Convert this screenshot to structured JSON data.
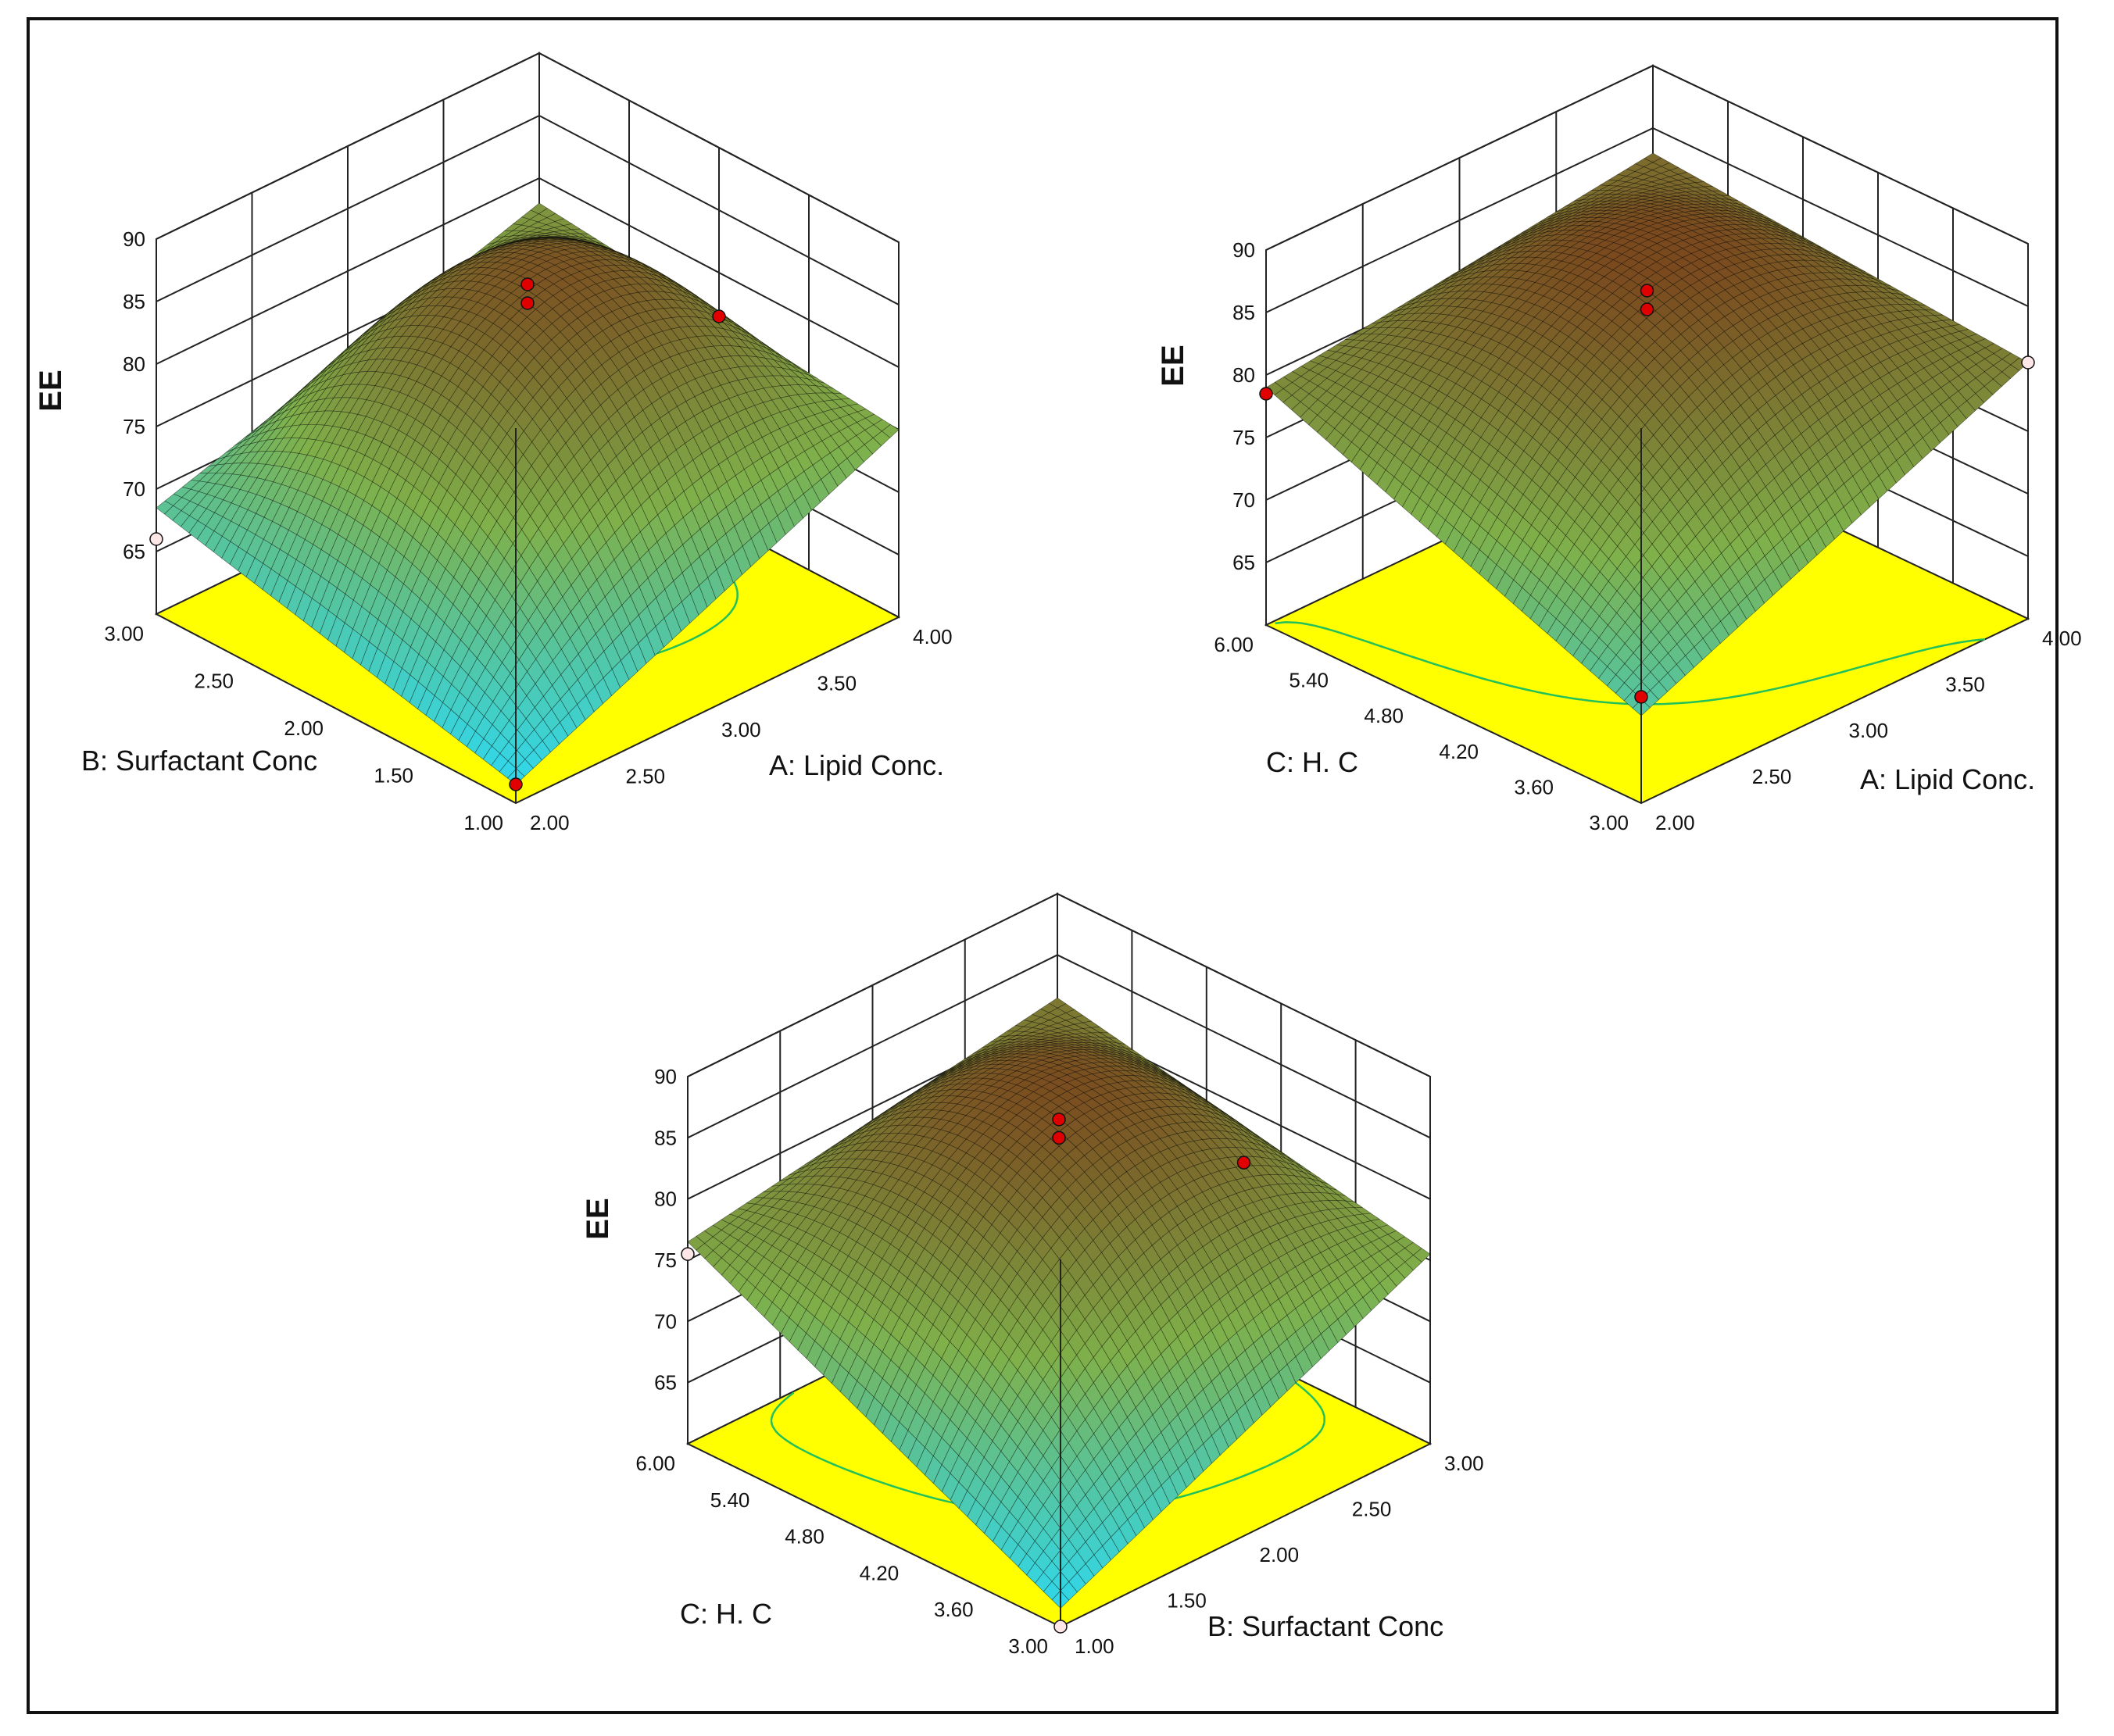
{
  "colors": {
    "frame": "#111111",
    "floor": "#ffff00",
    "grid": "#222222",
    "mesh": "#000000",
    "surface_low": "#33d6e6",
    "surface_mid": "#7fb04a",
    "surface_high": "#7a4a1e",
    "contour_green": "#22c05a",
    "contour_orange": "#e2601c",
    "design_point_red": "#e00000",
    "design_point_white": "#ffe7e7"
  },
  "chart_data": [
    {
      "type": "surface3d",
      "id": "plot-lipid-surfactant",
      "zlabel": "EE",
      "z_ticks": [
        "65",
        "70",
        "75",
        "80",
        "85",
        "90"
      ],
      "zlim": [
        60,
        90
      ],
      "x_factor": "A: Lipid Conc.",
      "x_ticks": [
        "2.00",
        "2.50",
        "3.00",
        "3.50",
        "4.00"
      ],
      "x_range": [
        2.0,
        4.0
      ],
      "y_factor": "B: Surfactant Conc",
      "y_ticks": [
        "1.00",
        "1.50",
        "2.00",
        "2.50",
        "3.00"
      ],
      "y_range": [
        1.0,
        3.0
      ],
      "surface_samples": {
        "corner_x_low_y_low": 61.5,
        "corner_x_high_y_low": 75.0,
        "corner_x_high_y_high": 78.0,
        "corner_x_low_y_high": 68.5,
        "center": 85.0
      },
      "contour_levels": [
        {
          "level": 80.0,
          "color": "green"
        },
        {
          "level": 84.5,
          "color": "orange"
        }
      ],
      "design_points": [
        {
          "x": 3.0,
          "y": 2.0,
          "z": 86.5,
          "color": "red"
        },
        {
          "x": 3.0,
          "y": 2.0,
          "z": 85.0,
          "color": "red"
        },
        {
          "x": 4.0,
          "y": 2.0,
          "z": 76.5,
          "color": "red"
        },
        {
          "x": 2.0,
          "y": 3.0,
          "z": 66.0,
          "color": "white"
        },
        {
          "x": 2.0,
          "y": 1.0,
          "z": 61.5,
          "color": "red"
        }
      ]
    },
    {
      "type": "surface3d",
      "id": "plot-lipid-hc",
      "zlabel": "EE",
      "z_ticks": [
        "65",
        "70",
        "75",
        "80",
        "85",
        "90"
      ],
      "zlim": [
        60,
        90
      ],
      "x_factor": "A: Lipid Conc.",
      "x_ticks": [
        "2.00",
        "2.50",
        "3.00",
        "3.50",
        "4.00"
      ],
      "x_range": [
        2.0,
        4.0
      ],
      "y_factor": "C: H. C",
      "y_ticks": [
        "3.00",
        "3.60",
        "4.20",
        "4.80",
        "5.40",
        "6.00"
      ],
      "y_range": [
        3.0,
        6.0
      ],
      "surface_samples": {
        "corner_x_low_y_low": 67.0,
        "corner_x_high_y_low": 80.5,
        "corner_x_high_y_high": 83.0,
        "corner_x_low_y_high": 79.0,
        "center": 86.5
      },
      "contour_levels": [
        {
          "level": 79.0,
          "color": "green"
        },
        {
          "level": 86.0,
          "color": "green"
        }
      ],
      "design_points": [
        {
          "x": 3.0,
          "y": 4.5,
          "z": 86.5,
          "color": "red"
        },
        {
          "x": 3.0,
          "y": 4.5,
          "z": 85.0,
          "color": "red"
        },
        {
          "x": 2.0,
          "y": 3.0,
          "z": 68.5,
          "color": "red"
        },
        {
          "x": 2.0,
          "y": 6.0,
          "z": 78.5,
          "color": "red"
        },
        {
          "x": 4.0,
          "y": 3.0,
          "z": 80.5,
          "color": "white"
        }
      ]
    },
    {
      "type": "surface3d",
      "id": "plot-surfactant-hc",
      "zlabel": "EE",
      "z_ticks": [
        "65",
        "70",
        "75",
        "80",
        "85",
        "90"
      ],
      "zlim": [
        60,
        90
      ],
      "x_factor": "B: Surfactant Conc",
      "x_ticks": [
        "1.00",
        "1.50",
        "2.00",
        "2.50",
        "3.00"
      ],
      "x_range": [
        1.0,
        3.0
      ],
      "y_factor": "C: H. C",
      "y_ticks": [
        "3.00",
        "3.60",
        "4.20",
        "4.80",
        "5.40",
        "6.00"
      ],
      "y_range": [
        3.0,
        6.0
      ],
      "surface_samples": {
        "corner_x_low_y_low": 61.5,
        "corner_x_high_y_low": 75.5,
        "corner_x_high_y_high": 81.5,
        "corner_x_low_y_high": 76.5,
        "center": 85.5
      },
      "contour_levels": [
        {
          "level": 78.0,
          "color": "green"
        },
        {
          "level": 85.5,
          "color": "green"
        }
      ],
      "design_points": [
        {
          "x": 2.0,
          "y": 4.5,
          "z": 86.5,
          "color": "red"
        },
        {
          "x": 2.0,
          "y": 4.5,
          "z": 85.0,
          "color": "red"
        },
        {
          "x": 3.0,
          "y": 4.5,
          "z": 75.5,
          "color": "red"
        },
        {
          "x": 1.0,
          "y": 6.0,
          "z": 75.5,
          "color": "white"
        },
        {
          "x": 1.0,
          "y": 3.0,
          "z": 60.0,
          "color": "white"
        }
      ]
    }
  ]
}
